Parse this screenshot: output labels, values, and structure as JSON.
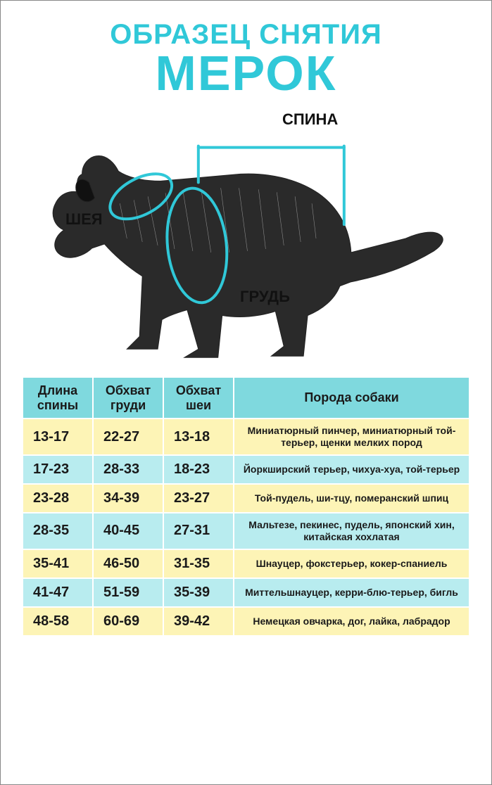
{
  "colors": {
    "accent": "#30c8d8",
    "header_bg": "#7fd9de",
    "row_odd_bg": "#fdf4b6",
    "row_even_bg": "#b8ecef",
    "text": "#1a1a1a",
    "page_bg": "#ffffff",
    "border": "#888888"
  },
  "title": {
    "line1": "ОБРАЗЕЦ СНЯТИЯ",
    "line2": "МЕРОК",
    "fontsize_line1": 40,
    "fontsize_line2": 70
  },
  "diagram": {
    "labels": {
      "back": "СПИНА",
      "neck": "ШЕЯ",
      "chest": "ГРУДЬ"
    },
    "line_color": "#30c8d8",
    "line_width": 4
  },
  "table": {
    "columns": [
      "Длина спины",
      "Обхват груди",
      "Обхват шеи",
      "Порода собаки"
    ],
    "header_fontsize": 18,
    "num_fontsize": 20,
    "breed_fontsize": 14,
    "rows": [
      {
        "back": "13-17",
        "chest": "22-27",
        "neck": "13-18",
        "breed": "Миниатюрный пинчер, миниатюрный той-терьер, щенки мелких пород"
      },
      {
        "back": "17-23",
        "chest": "28-33",
        "neck": "18-23",
        "breed": "Йоркширский терьер, чихуа-хуа, той-терьер"
      },
      {
        "back": "23-28",
        "chest": "34-39",
        "neck": "23-27",
        "breed": "Той-пудель, ши-тцу, померанский шпиц"
      },
      {
        "back": "28-35",
        "chest": "40-45",
        "neck": "27-31",
        "breed": "Мальтезе, пекинес, пудель, японский хин, китайская хохлатая"
      },
      {
        "back": "35-41",
        "chest": "46-50",
        "neck": "31-35",
        "breed": "Шнауцер, фокстерьер, кокер-спаниель"
      },
      {
        "back": "41-47",
        "chest": "51-59",
        "neck": "35-39",
        "breed": "Миттельшнауцер, керри-блю-терьер, бигль"
      },
      {
        "back": "48-58",
        "chest": "60-69",
        "neck": "39-42",
        "breed": "Немецкая овчарка, дог, лайка, лабрадор"
      }
    ]
  }
}
